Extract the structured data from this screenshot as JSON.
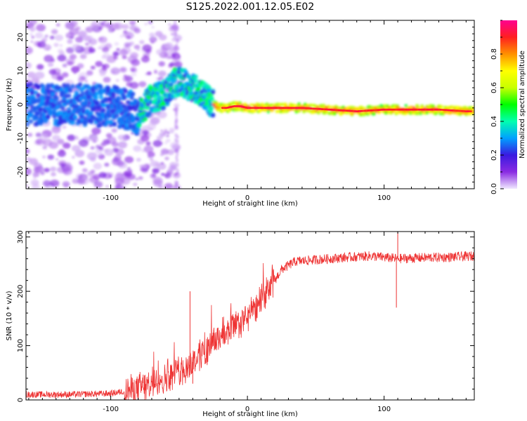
{
  "title": "S125.2022.001.12.05.E02",
  "chart_data": [
    {
      "type": "heatmap",
      "xlabel": "Height of straight line (km)",
      "ylabel": "Frequency (Hz)",
      "xlim": [
        -162,
        166
      ],
      "ylim": [
        -25,
        25
      ],
      "x_ticks": [
        -100,
        0,
        100
      ],
      "y_ticks": [
        -20,
        -10,
        0,
        10,
        20
      ],
      "colorbar": {
        "label": "Normalized spectral amplitude",
        "range": [
          0,
          1
        ],
        "ticks": [
          0.0,
          0.2,
          0.4,
          0.6,
          0.8
        ],
        "colormap": [
          "#f0e8ff",
          "#8a2be2",
          "#3a1ae0",
          "#00a0ff",
          "#00ffb0",
          "#00ff00",
          "#c8ff00",
          "#ffff00",
          "#ff9000",
          "#ff2020",
          "#ff0090"
        ]
      },
      "ridge": {
        "description_points_x": [
          -150,
          -120,
          -90,
          -80,
          -70,
          -60,
          -55,
          -50,
          -45,
          -40,
          -35,
          -30,
          -25,
          -20,
          -15,
          -10,
          -5,
          0,
          10,
          20,
          40,
          60,
          80,
          100,
          120,
          140,
          160,
          166
        ],
        "frequency_hz": [
          0,
          0,
          -1,
          -3,
          2,
          3,
          6,
          7,
          6,
          5,
          4,
          2,
          0,
          -1,
          -1,
          -0.5,
          -0.5,
          -1,
          -1,
          -1,
          -1,
          -1.5,
          -2,
          -1.5,
          -1.5,
          -1.5,
          -2,
          -2
        ]
      }
    },
    {
      "type": "line",
      "xlabel": "Height of straight line (km)",
      "ylabel": "SNR (10 * v/v)",
      "xlim": [
        -162,
        166
      ],
      "ylim": [
        0,
        310
      ],
      "x_ticks": [
        -100,
        0,
        100
      ],
      "y_ticks": [
        0,
        100,
        200,
        300
      ],
      "color": "#ee3333",
      "trend": {
        "x": [
          -162,
          -130,
          -100,
          -85,
          -75,
          -65,
          -55,
          -45,
          -35,
          -25,
          -15,
          -5,
          5,
          15,
          25,
          35,
          50,
          70,
          90,
          110,
          130,
          150,
          166
        ],
        "y": [
          10,
          10,
          12,
          18,
          25,
          35,
          45,
          60,
          80,
          105,
          125,
          140,
          165,
          200,
          240,
          255,
          258,
          262,
          265,
          260,
          262,
          263,
          265
        ]
      },
      "spikes": [
        {
          "x": -42,
          "y": 200
        },
        {
          "x": -40,
          "y": 30
        },
        {
          "x": 110,
          "y": 310
        },
        {
          "x": 109,
          "y": 170
        }
      ]
    }
  ]
}
